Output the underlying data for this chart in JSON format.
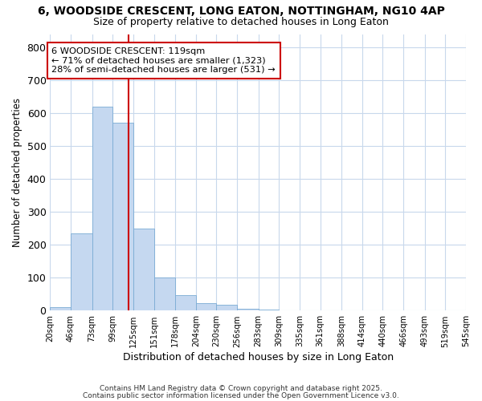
{
  "title": "6, WOODSIDE CRESCENT, LONG EATON, NOTTINGHAM, NG10 4AP",
  "subtitle": "Size of property relative to detached houses in Long Eaton",
  "xlabel": "Distribution of detached houses by size in Long Eaton",
  "ylabel": "Number of detached properties",
  "bar_color": "#c5d8f0",
  "bar_edge_color": "#7aabd4",
  "bg_color": "#ffffff",
  "fig_color": "#ffffff",
  "grid_color": "#c8d8ec",
  "vline_x": 119,
  "vline_color": "#cc0000",
  "annotation_text": "6 WOODSIDE CRESCENT: 119sqm\n← 71% of detached houses are smaller (1,323)\n28% of semi-detached houses are larger (531) →",
  "bins": [
    20,
    46,
    73,
    99,
    125,
    151,
    178,
    204,
    230,
    256,
    283,
    309,
    335,
    361,
    388,
    414,
    440,
    466,
    493,
    519,
    545
  ],
  "counts": [
    10,
    235,
    620,
    570,
    250,
    100,
    47,
    22,
    17,
    5,
    3,
    0,
    0,
    0,
    0,
    0,
    0,
    0,
    0,
    0
  ],
  "ylim": [
    0,
    840
  ],
  "yticks": [
    0,
    100,
    200,
    300,
    400,
    500,
    600,
    700,
    800
  ],
  "footnote1": "Contains HM Land Registry data © Crown copyright and database right 2025.",
  "footnote2": "Contains public sector information licensed under the Open Government Licence v3.0."
}
